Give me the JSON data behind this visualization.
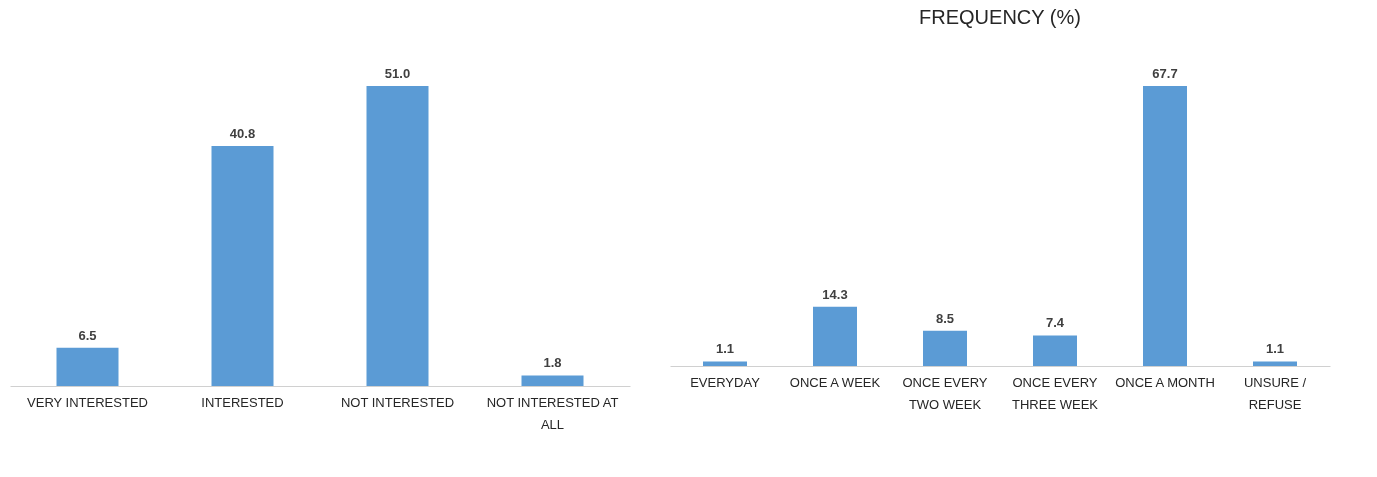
{
  "chart_data": [
    {
      "type": "bar",
      "categories": [
        "VERY INTERESTED",
        "INTERESTED",
        "NOT INTERESTED",
        "NOT INTERESTED AT ALL"
      ],
      "values": [
        6.5,
        40.8,
        51.0,
        1.8
      ],
      "value_labels": [
        "6.5",
        "40.8",
        "51.0",
        "1.8"
      ],
      "color": "#5b9bd5"
    },
    {
      "type": "bar",
      "title": "FREQUENCY (%)",
      "categories": [
        "EVERYDAY",
        "ONCE A WEEK",
        "ONCE EVERY TWO WEEK",
        "ONCE EVERY THREE WEEK",
        "ONCE A MONTH",
        "UNSURE / REFUSE"
      ],
      "values": [
        1.1,
        14.3,
        8.5,
        7.4,
        67.7,
        1.1
      ],
      "value_labels": [
        "1.1",
        "14.3",
        "8.5",
        "7.4",
        "67.7",
        "1.1"
      ],
      "color": "#5b9bd5"
    }
  ]
}
